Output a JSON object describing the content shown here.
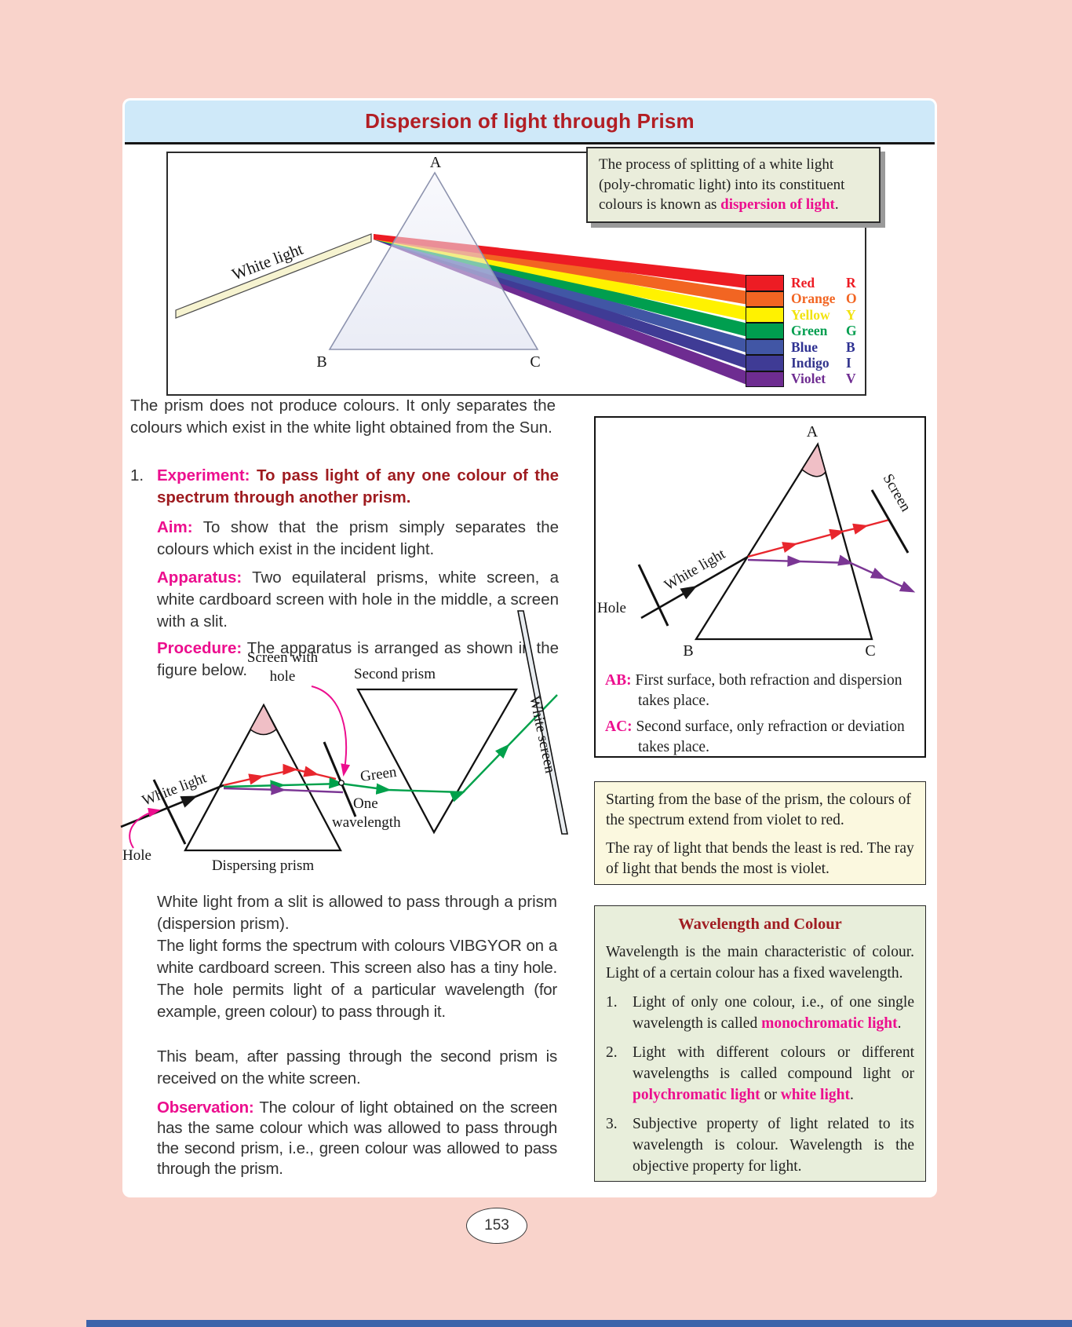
{
  "page": {
    "title": "Dispersion of light through Prism",
    "page_number": "153"
  },
  "colors": {
    "magenta_accent": "#ec0e8e",
    "heading_red": "#b21e24",
    "dark_red": "#9e1b1f",
    "banner_blue": "#cfe9f9",
    "page_pink": "#f9d3cb",
    "definition_box_bg": "#eaeddb",
    "note_box_bg": "#fbf8df",
    "wavelength_box_bg": "#e8eedb"
  },
  "definition_box": {
    "parts": [
      {
        "t": "The process of splitting of a white light (poly-chromatic light) into its constituent colours is known as "
      },
      {
        "t": "dispersion of light",
        "c": "hl"
      },
      {
        "t": "."
      }
    ]
  },
  "figure_top": {
    "labels": {
      "apex": "A",
      "left": "B",
      "right": "C",
      "beam": "White light"
    },
    "legend": [
      {
        "name": "Red",
        "letter": "R",
        "hex": "#ed1c24",
        "label_hex": "#ed1c24"
      },
      {
        "name": "Orange",
        "letter": "O",
        "hex": "#f26522",
        "label_hex": "#f26522"
      },
      {
        "name": "Yellow",
        "letter": "Y",
        "hex": "#fff200",
        "label_hex": "#f2e30e"
      },
      {
        "name": "Green",
        "letter": "G",
        "hex": "#009e4f",
        "label_hex": "#009e4f"
      },
      {
        "name": "Blue",
        "letter": "B",
        "hex": "#4156a5",
        "label_hex": "#2e3192"
      },
      {
        "name": "Indigo",
        "letter": "I",
        "hex": "#3f3b95",
        "label_hex": "#33358d"
      },
      {
        "name": "Violet",
        "letter": "V",
        "hex": "#6e2c91",
        "label_hex": "#6e2c91"
      }
    ]
  },
  "intro": "The prism does not produce colours. It only separates the colours which exist in the white light obtained from the Sun.",
  "experiment": {
    "number": "1.",
    "label": "Experiment:",
    "title": "To pass light of any one colour of the spectrum through another prism."
  },
  "sections": [
    {
      "label": "Aim:",
      "text": "To show that the prism simply separates the colours which exist in the incident light."
    },
    {
      "label": "Apparatus:",
      "text": "Two equilateral prisms, white screen, a white cardboard screen with hole in the middle, a screen with a slit."
    },
    {
      "label": "Procedure:",
      "text": "The apparatus is arranged as shown in the figure below."
    }
  ],
  "figure_mid": {
    "labels": {
      "second_prism": "Second prism",
      "screen_with_hole_1": "Screen with",
      "screen_with_hole_2": "hole",
      "white_light": "White light",
      "green": "Green",
      "one": "One",
      "wavelength": "wavelength",
      "hole": "Hole",
      "dispersing_prism": "Dispersing prism",
      "white_screen": "White screen"
    }
  },
  "paragraphs": [
    "White light from a slit is allowed to pass through a prism (dispersion prism).",
    "The light forms the spectrum with colours VIBGYOR on a white cardboard screen. This screen also has a tiny hole. The hole permits light of a particular wavelength (for example, green colour) to pass through it.",
    "This beam, after passing through the second prism is received on the white screen."
  ],
  "observation": {
    "label": "Observation:",
    "text": "The colour of light obtained on the screen has the same colour which was allowed to pass through the second prism, i.e., green colour was allowed to pass through the prism."
  },
  "figure_right": {
    "labels": {
      "apex": "A",
      "left": "B",
      "right": "C",
      "hole": "Hole",
      "white_light": "White light",
      "screen": "Screen"
    },
    "notes": [
      {
        "label": "AB:",
        "text": "First surface,  both refraction and dispersion takes place."
      },
      {
        "label": "AC:",
        "text": "Second surface, only refraction or deviation takes place."
      }
    ]
  },
  "note_box": {
    "lines": [
      "Starting from the base of the prism, the colours of the spectrum extend from violet to red.",
      "The ray of light that bends the least is red. The ray of light that bends the most is violet."
    ]
  },
  "wavelength_box": {
    "title": "Wavelength and Colour",
    "intro": "Wavelength is the main characteristic of colour. Light of a certain colour has a fixed wavelength.",
    "items": [
      {
        "number": "1.",
        "parts": [
          {
            "t": "Light of only one colour, i.e., of one single wavelength is called "
          },
          {
            "t": "monochromatic light",
            "c": "hl"
          },
          {
            "t": "."
          }
        ]
      },
      {
        "number": "2.",
        "parts": [
          {
            "t": "Light with different colours or different wavelengths is called compound light or "
          },
          {
            "t": "polychromatic light",
            "c": "hl"
          },
          {
            "t": " or "
          },
          {
            "t": "white light",
            "c": "hl"
          },
          {
            "t": "."
          }
        ]
      },
      {
        "number": "3.",
        "parts": [
          {
            "t": "Subjective property of light related to its wavelength is colour. Wavelength is the objective property for light."
          }
        ]
      }
    ]
  }
}
